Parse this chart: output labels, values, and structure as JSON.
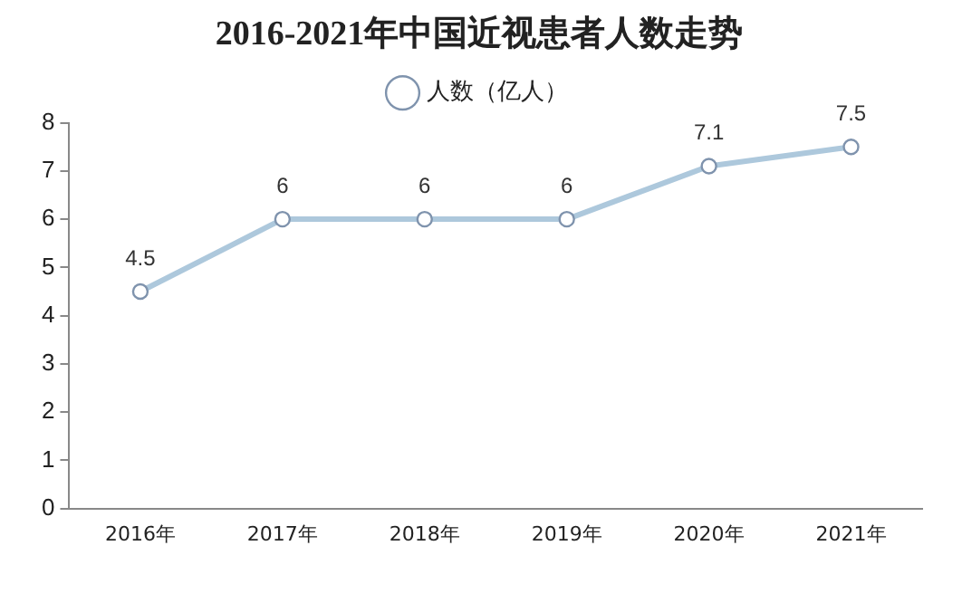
{
  "chart_data": {
    "type": "line",
    "title": "2016-2021年中国近视患者人数走势",
    "categories": [
      "2016年",
      "2017年",
      "2018年",
      "2019年",
      "2020年",
      "2021年"
    ],
    "series": [
      {
        "name": "人数（亿人）",
        "color": "#adc8dc",
        "values": [
          4.5,
          6,
          6,
          6,
          7.1,
          7.5
        ]
      }
    ],
    "ylim": [
      0,
      8
    ],
    "yticks": [
      0,
      1,
      2,
      3,
      4,
      5,
      6,
      7,
      8
    ],
    "grid": false,
    "legend": "top",
    "marker": "circle",
    "line_style": "solid",
    "data_labels": true
  }
}
